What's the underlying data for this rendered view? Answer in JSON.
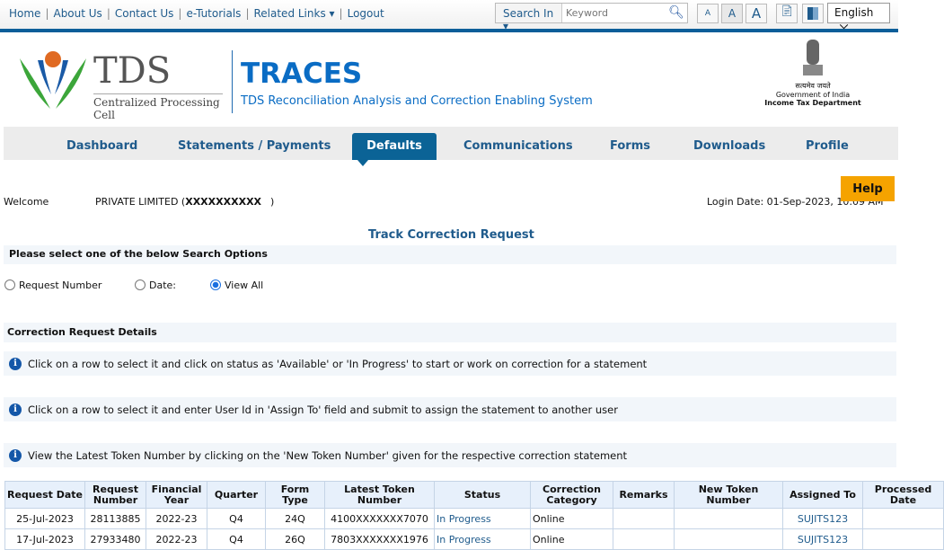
{
  "toplinks": [
    "Home",
    "About Us",
    "Contact Us",
    "e-Tutorials",
    "Related Links ▾",
    "Logout"
  ],
  "search": {
    "label": "Search In ▾",
    "placeholder": "Keyword"
  },
  "font_sizes": [
    "A",
    "A",
    "A"
  ],
  "language": "English",
  "logo": {
    "tds": "TDS",
    "cpc": "Centralized Processing Cell"
  },
  "header": {
    "title": "TRACES",
    "subtitle": "TDS Reconciliation Analysis and Correction Enabling System"
  },
  "emblem": {
    "hindi": "सत्यमेव जयते",
    "gov": "Government of India",
    "dept": "Income Tax Department"
  },
  "nav": [
    "Dashboard",
    "Statements / Payments",
    "Defaults",
    "Communications",
    "Forms",
    "Downloads",
    "Profile"
  ],
  "help": "Help",
  "welcome": {
    "label": "Welcome",
    "name": "PRIVATE LIMITED (",
    "id": "XXXXXXXXXX",
    "close": ")",
    "login": "Login Date: 01-Sep-2023, 10:09 AM"
  },
  "page_title": "Track Correction Request",
  "search_options": {
    "title": "Please select one of the below Search Options",
    "options": [
      "Request Number",
      "Date:",
      "View All"
    ],
    "selected": "View All"
  },
  "details": {
    "title": "Correction Request Details",
    "infos": [
      "Click on a row to select it and click on status as 'Available' or 'In Progress' to start or work on correction for a statement",
      "Click on a row to select it and enter User Id in 'Assign To' field and submit to assign the statement to another user",
      "View the Latest Token Number by clicking on the 'New Token Number' given for the respective correction statement"
    ]
  },
  "table": {
    "headers": [
      "Request Date",
      "Request Number",
      "Financial Year",
      "Quarter",
      "Form Type",
      "Latest Token Number",
      "Status",
      "Correction Category",
      "Remarks",
      "New Token Number",
      "Assigned To",
      "Processed Date"
    ],
    "rows": [
      [
        "25-Jul-2023",
        "28113885",
        "2022-23",
        "Q4",
        "24Q",
        "4100XXXXXXX7070",
        "In Progress",
        "Online",
        "",
        "",
        "SUJITS123",
        ""
      ],
      [
        "17-Jul-2023",
        "27933480",
        "2022-23",
        "Q4",
        "26Q",
        "7803XXXXXXX1976",
        "In Progress",
        "Online",
        "",
        "",
        "SUJITS123",
        ""
      ]
    ]
  },
  "colors": {
    "brand": "#0b6396",
    "link": "#1f5b8c",
    "help": "#f5a300"
  }
}
